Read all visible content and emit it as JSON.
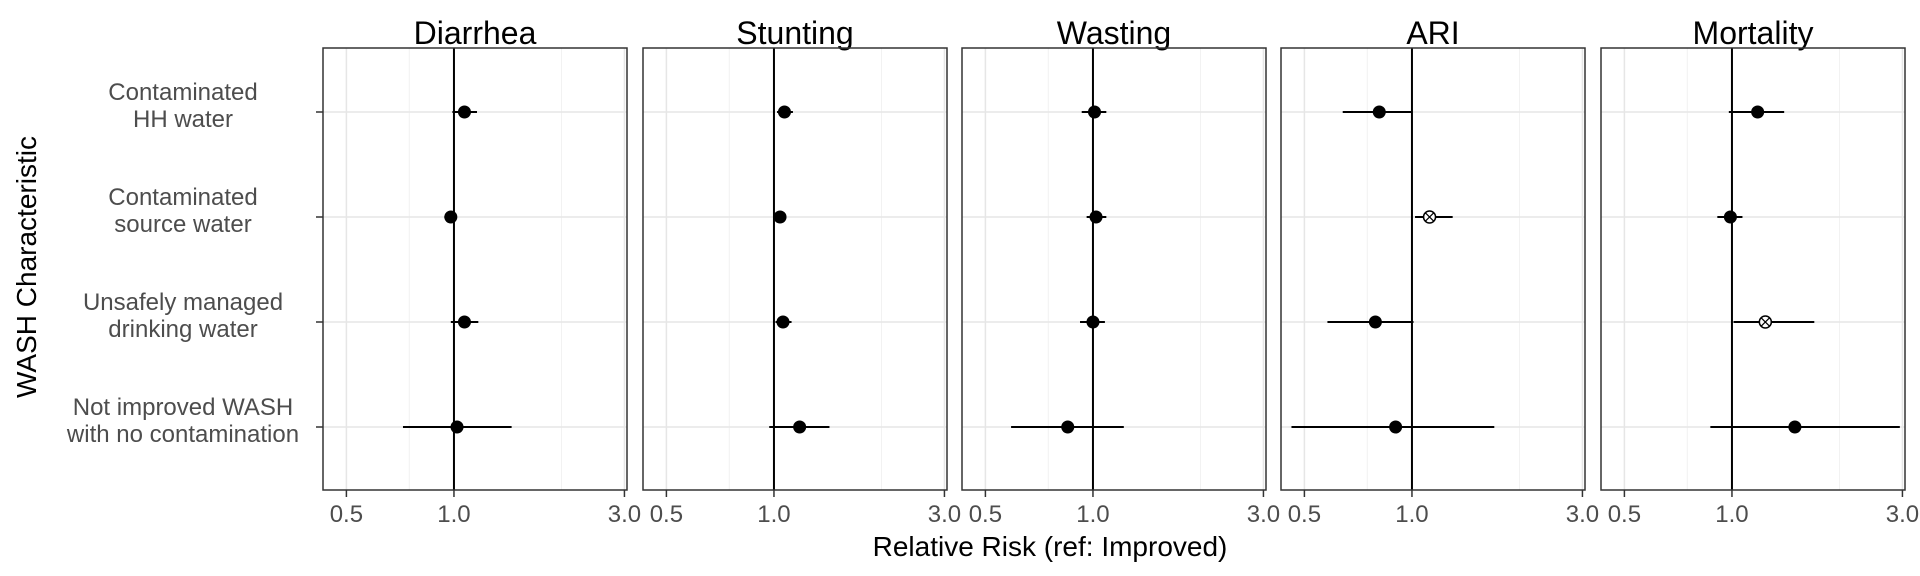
{
  "chart_data": {
    "type": "forest",
    "xlabel": "Relative Risk (ref: Improved)",
    "ylabel": "WASH Characteristic",
    "x_scale": "log",
    "xlim": [
      0.43,
      3.05
    ],
    "x_ticks": [
      0.5,
      1.0,
      3.0
    ],
    "x_tick_labels": [
      "0.5",
      "1.0",
      "3.0"
    ],
    "reference_line": 1.0,
    "grid": true,
    "categories": [
      [
        "Contaminated",
        "HH water"
      ],
      [
        "Contaminated",
        "source water"
      ],
      [
        "Unsafely managed",
        "drinking water"
      ],
      [
        "Not improved WASH",
        "with no contamination"
      ]
    ],
    "panels": [
      {
        "title": "Diarrhea",
        "points": [
          {
            "est": 1.07,
            "lo": 0.99,
            "hi": 1.16,
            "hollow": false
          },
          {
            "est": 0.98,
            "lo": 0.94,
            "hi": 1.02,
            "hollow": false
          },
          {
            "est": 1.07,
            "lo": 0.98,
            "hi": 1.17,
            "hollow": false
          },
          {
            "est": 1.02,
            "lo": 0.72,
            "hi": 1.45,
            "hollow": false
          }
        ]
      },
      {
        "title": "Stunting",
        "points": [
          {
            "est": 1.07,
            "lo": 1.02,
            "hi": 1.13,
            "hollow": false
          },
          {
            "est": 1.04,
            "lo": 1.02,
            "hi": 1.07,
            "hollow": false
          },
          {
            "est": 1.06,
            "lo": 1.01,
            "hi": 1.12,
            "hollow": false
          },
          {
            "est": 1.18,
            "lo": 0.97,
            "hi": 1.43,
            "hollow": false
          }
        ]
      },
      {
        "title": "Wasting",
        "points": [
          {
            "est": 1.01,
            "lo": 0.93,
            "hi": 1.09,
            "hollow": false
          },
          {
            "est": 1.02,
            "lo": 0.96,
            "hi": 1.09,
            "hollow": false
          },
          {
            "est": 1.0,
            "lo": 0.92,
            "hi": 1.08,
            "hollow": false
          },
          {
            "est": 0.85,
            "lo": 0.59,
            "hi": 1.22,
            "hollow": false
          }
        ]
      },
      {
        "title": "ARI",
        "points": [
          {
            "est": 0.81,
            "lo": 0.64,
            "hi": 1.0,
            "hollow": false
          },
          {
            "est": 1.12,
            "lo": 1.02,
            "hi": 1.3,
            "hollow": true
          },
          {
            "est": 0.79,
            "lo": 0.58,
            "hi": 1.01,
            "hollow": false
          },
          {
            "est": 0.9,
            "lo": 0.46,
            "hi": 1.7,
            "hollow": false
          }
        ]
      },
      {
        "title": "Mortality",
        "points": [
          {
            "est": 1.18,
            "lo": 0.98,
            "hi": 1.4,
            "hollow": false
          },
          {
            "est": 0.99,
            "lo": 0.91,
            "hi": 1.07,
            "hollow": false
          },
          {
            "est": 1.24,
            "lo": 1.01,
            "hi": 1.7,
            "hollow": true
          },
          {
            "est": 1.5,
            "lo": 0.87,
            "hi": 2.95,
            "hollow": false
          }
        ]
      }
    ]
  }
}
